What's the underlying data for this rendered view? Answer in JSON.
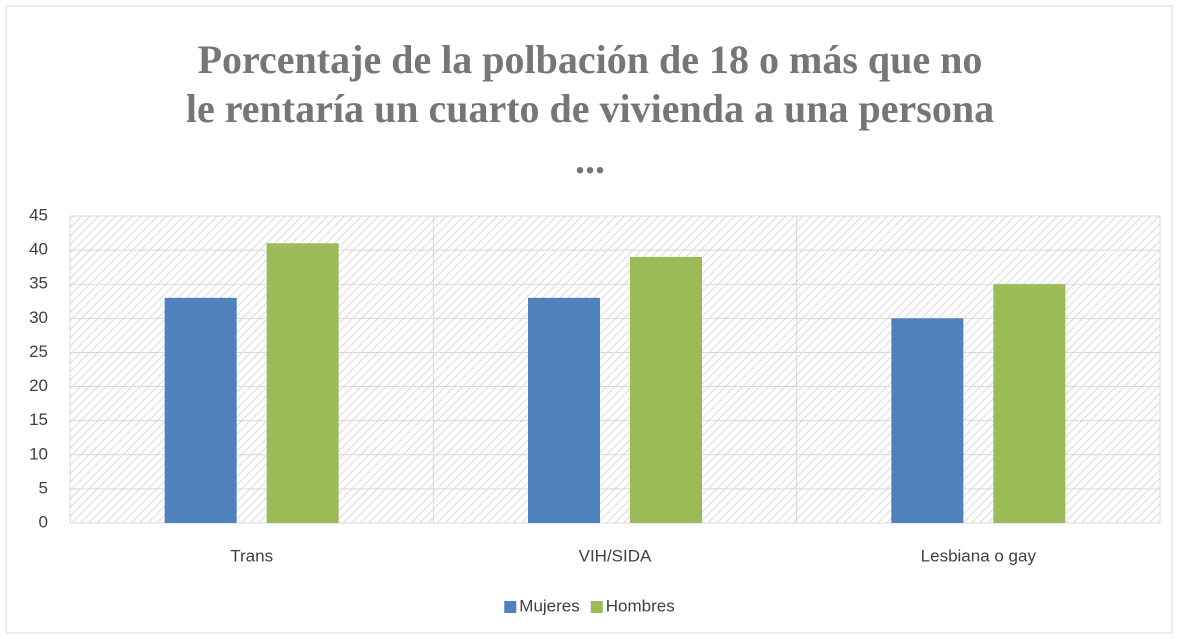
{
  "chart_data": {
    "type": "bar",
    "title": [
      "Porcentaje de la polbación de 18 o más que no",
      "le rentaría un cuarto de vivienda a una persona",
      "..."
    ],
    "categories": [
      "Trans",
      "VIH/SIDA",
      "Lesbiana o gay"
    ],
    "series": [
      {
        "name": "Mujeres",
        "color": "#4f81bd",
        "values": [
          33,
          33,
          30
        ]
      },
      {
        "name": "Hombres",
        "color": "#9bbb59",
        "values": [
          41,
          39,
          35
        ]
      }
    ],
    "ylim": [
      0,
      45
    ],
    "yticks": [
      0,
      5,
      10,
      15,
      20,
      25,
      30,
      35,
      40,
      45
    ],
    "grid": true,
    "legend": "bottom"
  }
}
